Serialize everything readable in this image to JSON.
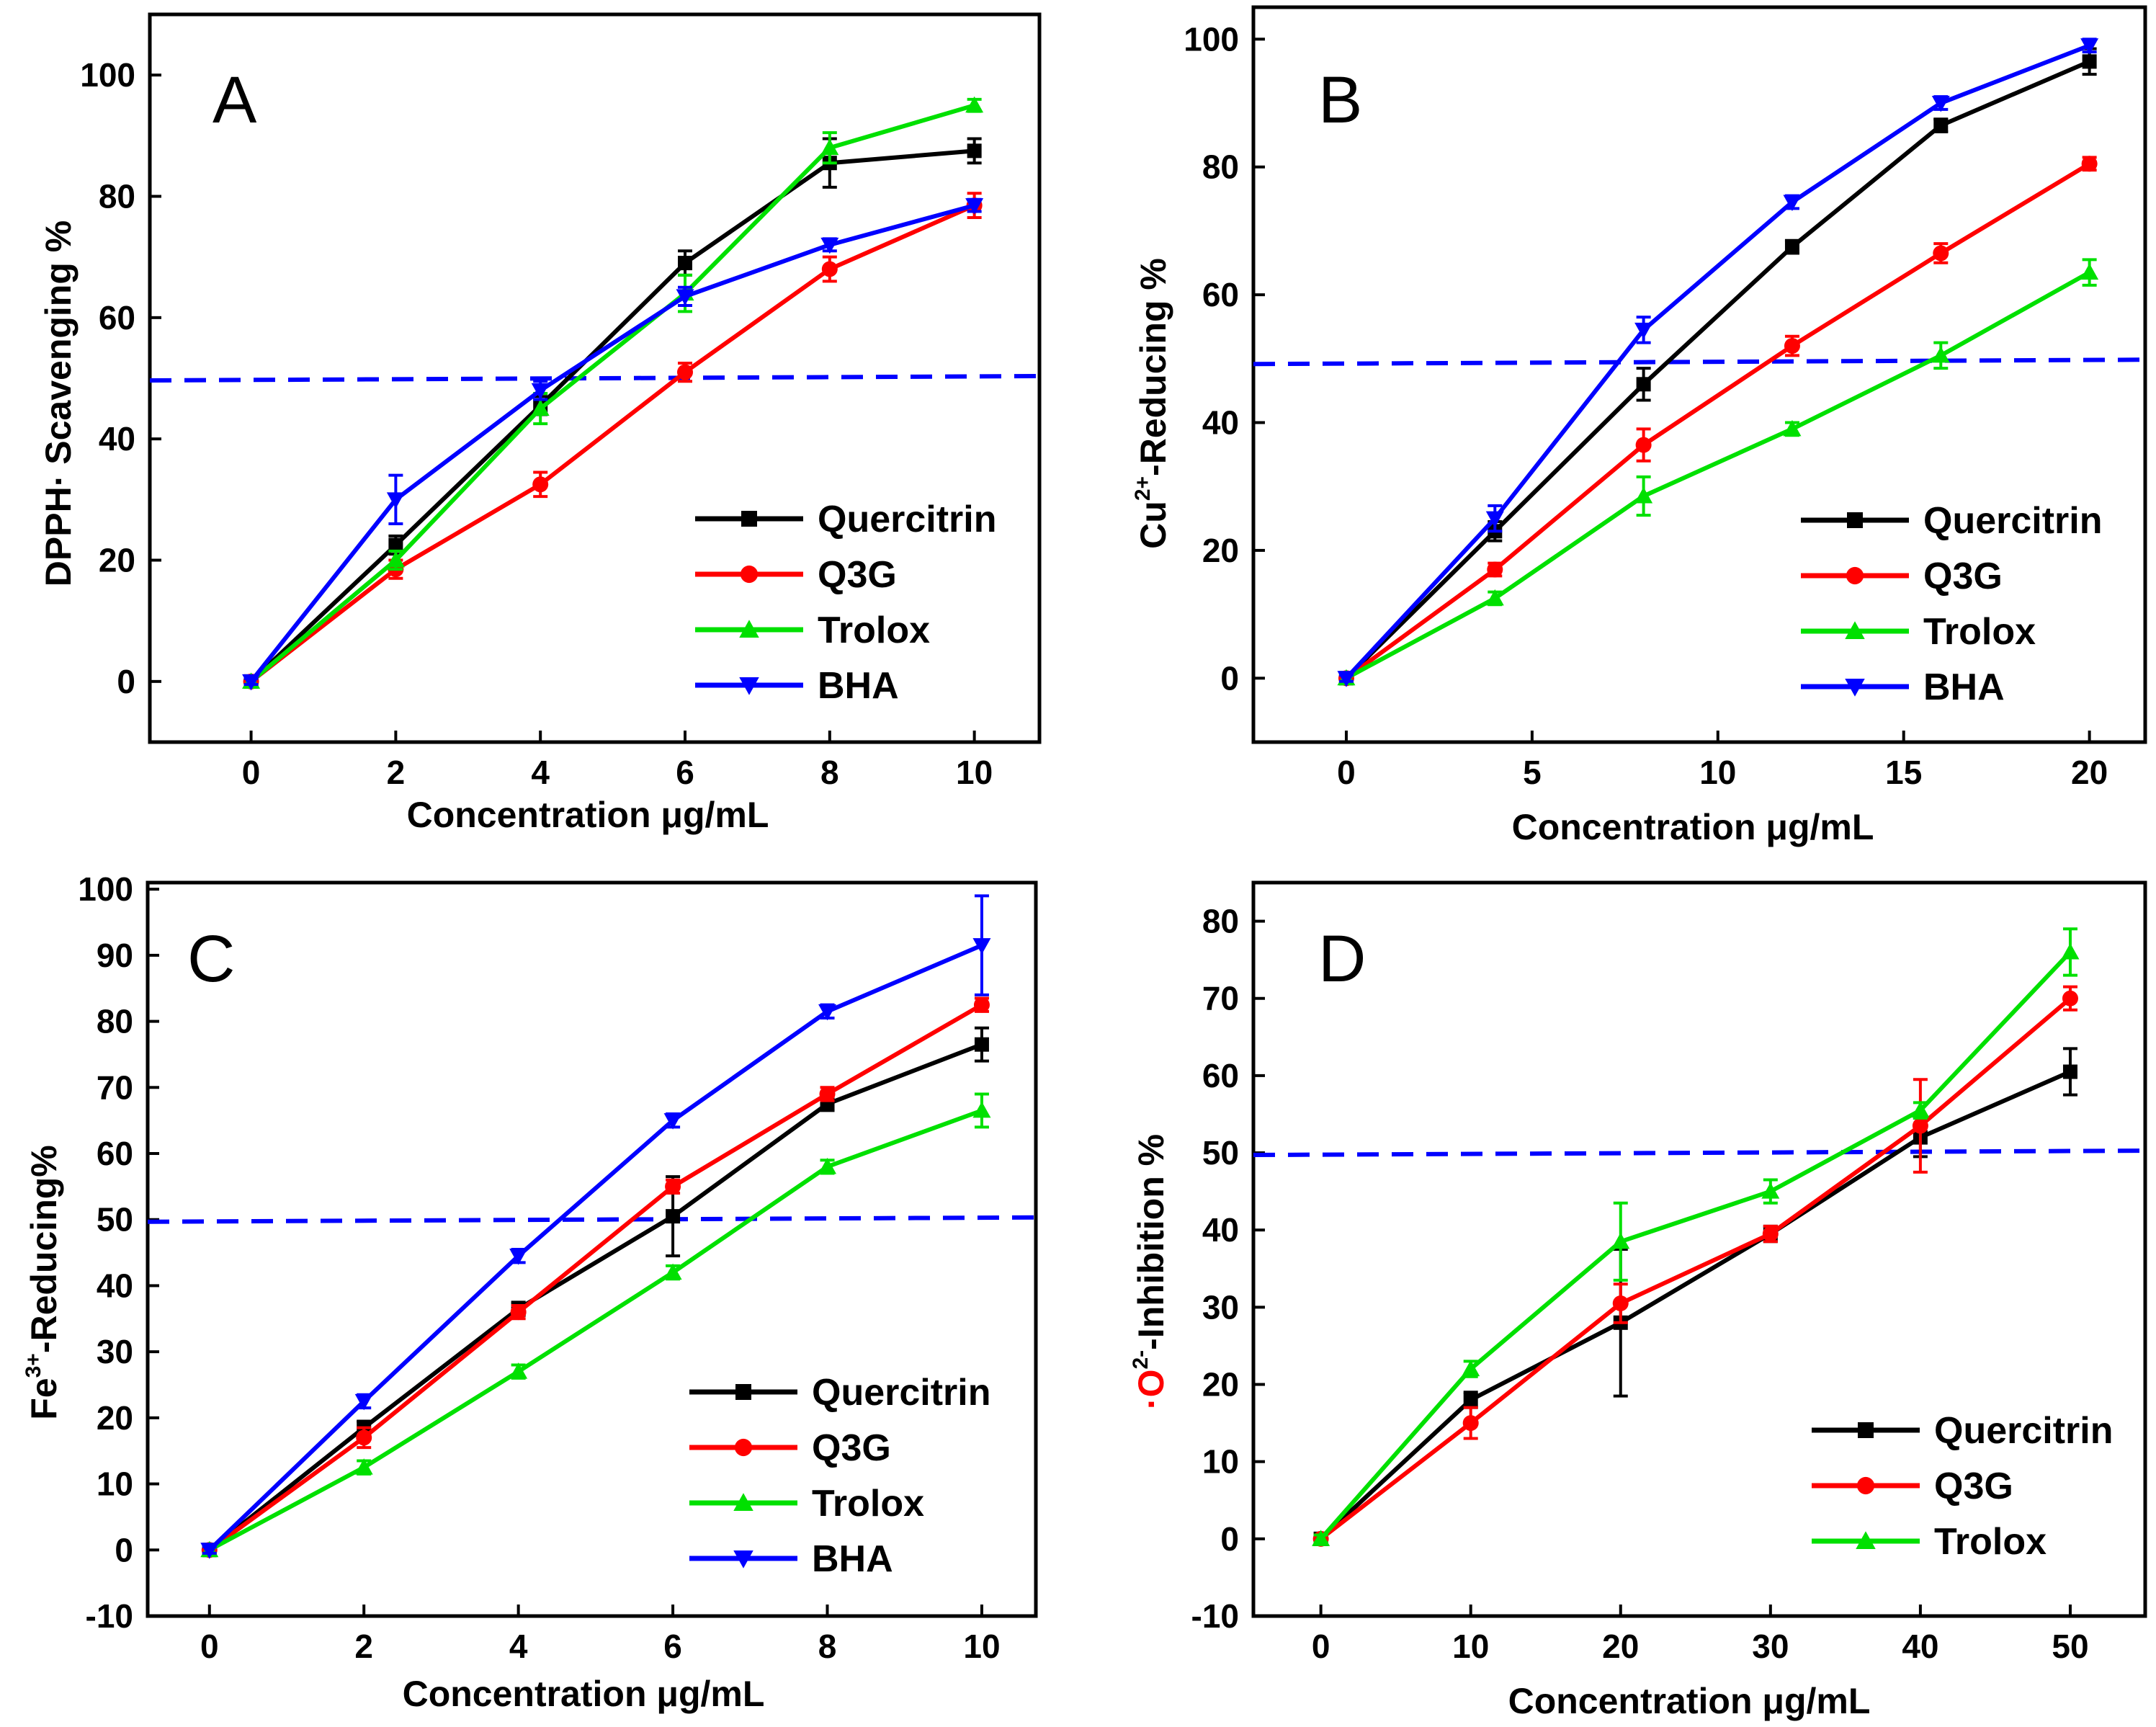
{
  "chart_data": [
    {
      "type": "line",
      "panel": "A",
      "xlabel": "Concentration  μg/mL",
      "ylabel": "DPPH· Scavenging %",
      "xlim": [
        -1.4,
        10.9
      ],
      "ylim": [
        -10,
        110
      ],
      "xticks": [
        0,
        2,
        4,
        6,
        8,
        10
      ],
      "yticks": [
        0,
        20,
        40,
        60,
        80,
        100
      ],
      "threshold": 50,
      "legend_position": "bottom-right",
      "x": [
        0,
        2,
        4,
        6,
        8,
        10
      ],
      "series": [
        {
          "name": "Quercitrin",
          "color": "#000000",
          "marker": "square",
          "values": [
            0,
            22.5,
            45.5,
            69,
            85.5,
            87.5
          ],
          "errors": [
            0.5,
            1.5,
            1.5,
            2,
            4,
            2
          ]
        },
        {
          "name": "Q3G",
          "color": "#ff0000",
          "marker": "circle",
          "values": [
            0,
            18.5,
            32.5,
            51,
            68,
            78.5
          ],
          "errors": [
            0.5,
            1.5,
            2,
            1.5,
            2,
            2
          ]
        },
        {
          "name": "Trolox",
          "color": "#00e000",
          "marker": "triangle-up",
          "values": [
            0,
            20,
            45,
            64,
            88,
            95
          ],
          "errors": [
            0.5,
            1.5,
            2.5,
            3,
            2.5,
            1
          ]
        },
        {
          "name": "BHA",
          "color": "#0000ff",
          "marker": "triangle-down",
          "values": [
            0,
            30,
            48,
            63.5,
            72,
            78.5
          ],
          "errors": [
            0.5,
            4,
            1.5,
            1.5,
            1,
            1
          ]
        }
      ]
    },
    {
      "type": "line",
      "panel": "B",
      "xlabel": "Concentration  μg/mL",
      "ylabel_prefix": "Cu",
      "ylabel_sup": "2+",
      "ylabel_suffix": "-Reducing %",
      "xlim": [
        -2.5,
        21.5
      ],
      "ylim": [
        -10,
        105
      ],
      "xticks": [
        0,
        5,
        10,
        15,
        20
      ],
      "yticks": [
        0,
        20,
        40,
        60,
        80,
        100
      ],
      "threshold": 49.5,
      "legend_position": "bottom-right",
      "x": [
        0,
        4,
        8,
        12,
        16,
        20
      ],
      "series": [
        {
          "name": "Quercitrin",
          "color": "#000000",
          "marker": "square",
          "values": [
            0,
            23,
            46,
            67.5,
            86.5,
            96.5
          ],
          "errors": [
            0.5,
            1.5,
            2.5,
            1,
            1,
            2
          ]
        },
        {
          "name": "Q3G",
          "color": "#ff0000",
          "marker": "circle",
          "values": [
            0,
            17,
            36.5,
            52,
            66.5,
            80.5
          ],
          "errors": [
            0.5,
            1,
            2.5,
            1.5,
            1.5,
            1
          ]
        },
        {
          "name": "Trolox",
          "color": "#00e000",
          "marker": "triangle-up",
          "values": [
            0,
            12.5,
            28.5,
            39,
            50.5,
            63.5
          ],
          "errors": [
            0.5,
            1,
            3,
            1,
            2,
            2
          ]
        },
        {
          "name": "BHA",
          "color": "#0000ff",
          "marker": "triangle-down",
          "values": [
            0,
            25,
            54.5,
            74.5,
            90,
            99
          ],
          "errors": [
            0.5,
            2,
            2,
            1,
            1,
            1
          ]
        }
      ]
    },
    {
      "type": "line",
      "panel": "C",
      "xlabel": "Concentration  μg/mL",
      "ylabel_prefix": "Fe",
      "ylabel_sup": "3+",
      "ylabel_suffix": "-Reducing%",
      "xlim": [
        -0.8,
        10.7
      ],
      "ylim": [
        -10,
        101
      ],
      "xticks": [
        0,
        2,
        4,
        6,
        8,
        10
      ],
      "yticks": [
        -10,
        0,
        10,
        20,
        30,
        40,
        50,
        60,
        70,
        80,
        90,
        100
      ],
      "threshold": 50,
      "legend_position": "bottom-right",
      "x": [
        0,
        2,
        4,
        6,
        8,
        10
      ],
      "series": [
        {
          "name": "Quercitrin",
          "color": "#000000",
          "marker": "square",
          "values": [
            0,
            18.5,
            36.5,
            50.5,
            67.5,
            76.5
          ],
          "errors": [
            0.5,
            1,
            1,
            6,
            1,
            2.5
          ]
        },
        {
          "name": "Q3G",
          "color": "#ff0000",
          "marker": "circle",
          "values": [
            0,
            17,
            36,
            55,
            69,
            82.5
          ],
          "errors": [
            0.5,
            1.5,
            1,
            1,
            1,
            1
          ]
        },
        {
          "name": "Trolox",
          "color": "#00e000",
          "marker": "triangle-up",
          "values": [
            0,
            12.5,
            27,
            42,
            58,
            66.5
          ],
          "errors": [
            0.5,
            1,
            1,
            1,
            1,
            2.5
          ]
        },
        {
          "name": "BHA",
          "color": "#0000ff",
          "marker": "triangle-down",
          "values": [
            0,
            22.5,
            44.5,
            65,
            81.5,
            91.5
          ],
          "errors": [
            0.5,
            1,
            1,
            1,
            1,
            7.5
          ]
        }
      ]
    },
    {
      "type": "line",
      "panel": "D",
      "xlabel": "Concentration  μg/mL",
      "ylabel_prefix": "·O",
      "ylabel_sup": "2-",
      "ylabel_suffix": "-Inhibition %",
      "xlim": [
        -4.5,
        55
      ],
      "ylim": [
        -10,
        85
      ],
      "xticks": [
        0,
        10,
        20,
        30,
        40,
        50
      ],
      "yticks": [
        -10,
        0,
        10,
        20,
        30,
        40,
        50,
        60,
        70,
        80
      ],
      "threshold": 50,
      "legend_position": "bottom-right",
      "x": [
        0,
        10,
        20,
        30,
        40,
        50
      ],
      "series": [
        {
          "name": "Quercitrin",
          "color": "#000000",
          "marker": "square",
          "values": [
            0,
            18,
            28,
            39.5,
            52,
            60.5
          ],
          "errors": [
            0.5,
            1,
            9.5,
            1,
            2.5,
            3
          ]
        },
        {
          "name": "Q3G",
          "color": "#ff0000",
          "marker": "circle",
          "values": [
            0,
            15,
            30.5,
            39.5,
            53.5,
            70
          ],
          "errors": [
            0.5,
            2,
            2.5,
            1,
            6,
            1.5
          ]
        },
        {
          "name": "Trolox",
          "color": "#00e000",
          "marker": "triangle-up",
          "values": [
            0,
            22,
            38.5,
            45,
            55.5,
            76
          ],
          "errors": [
            0.5,
            1,
            5,
            1.5,
            1,
            3
          ]
        }
      ]
    }
  ]
}
